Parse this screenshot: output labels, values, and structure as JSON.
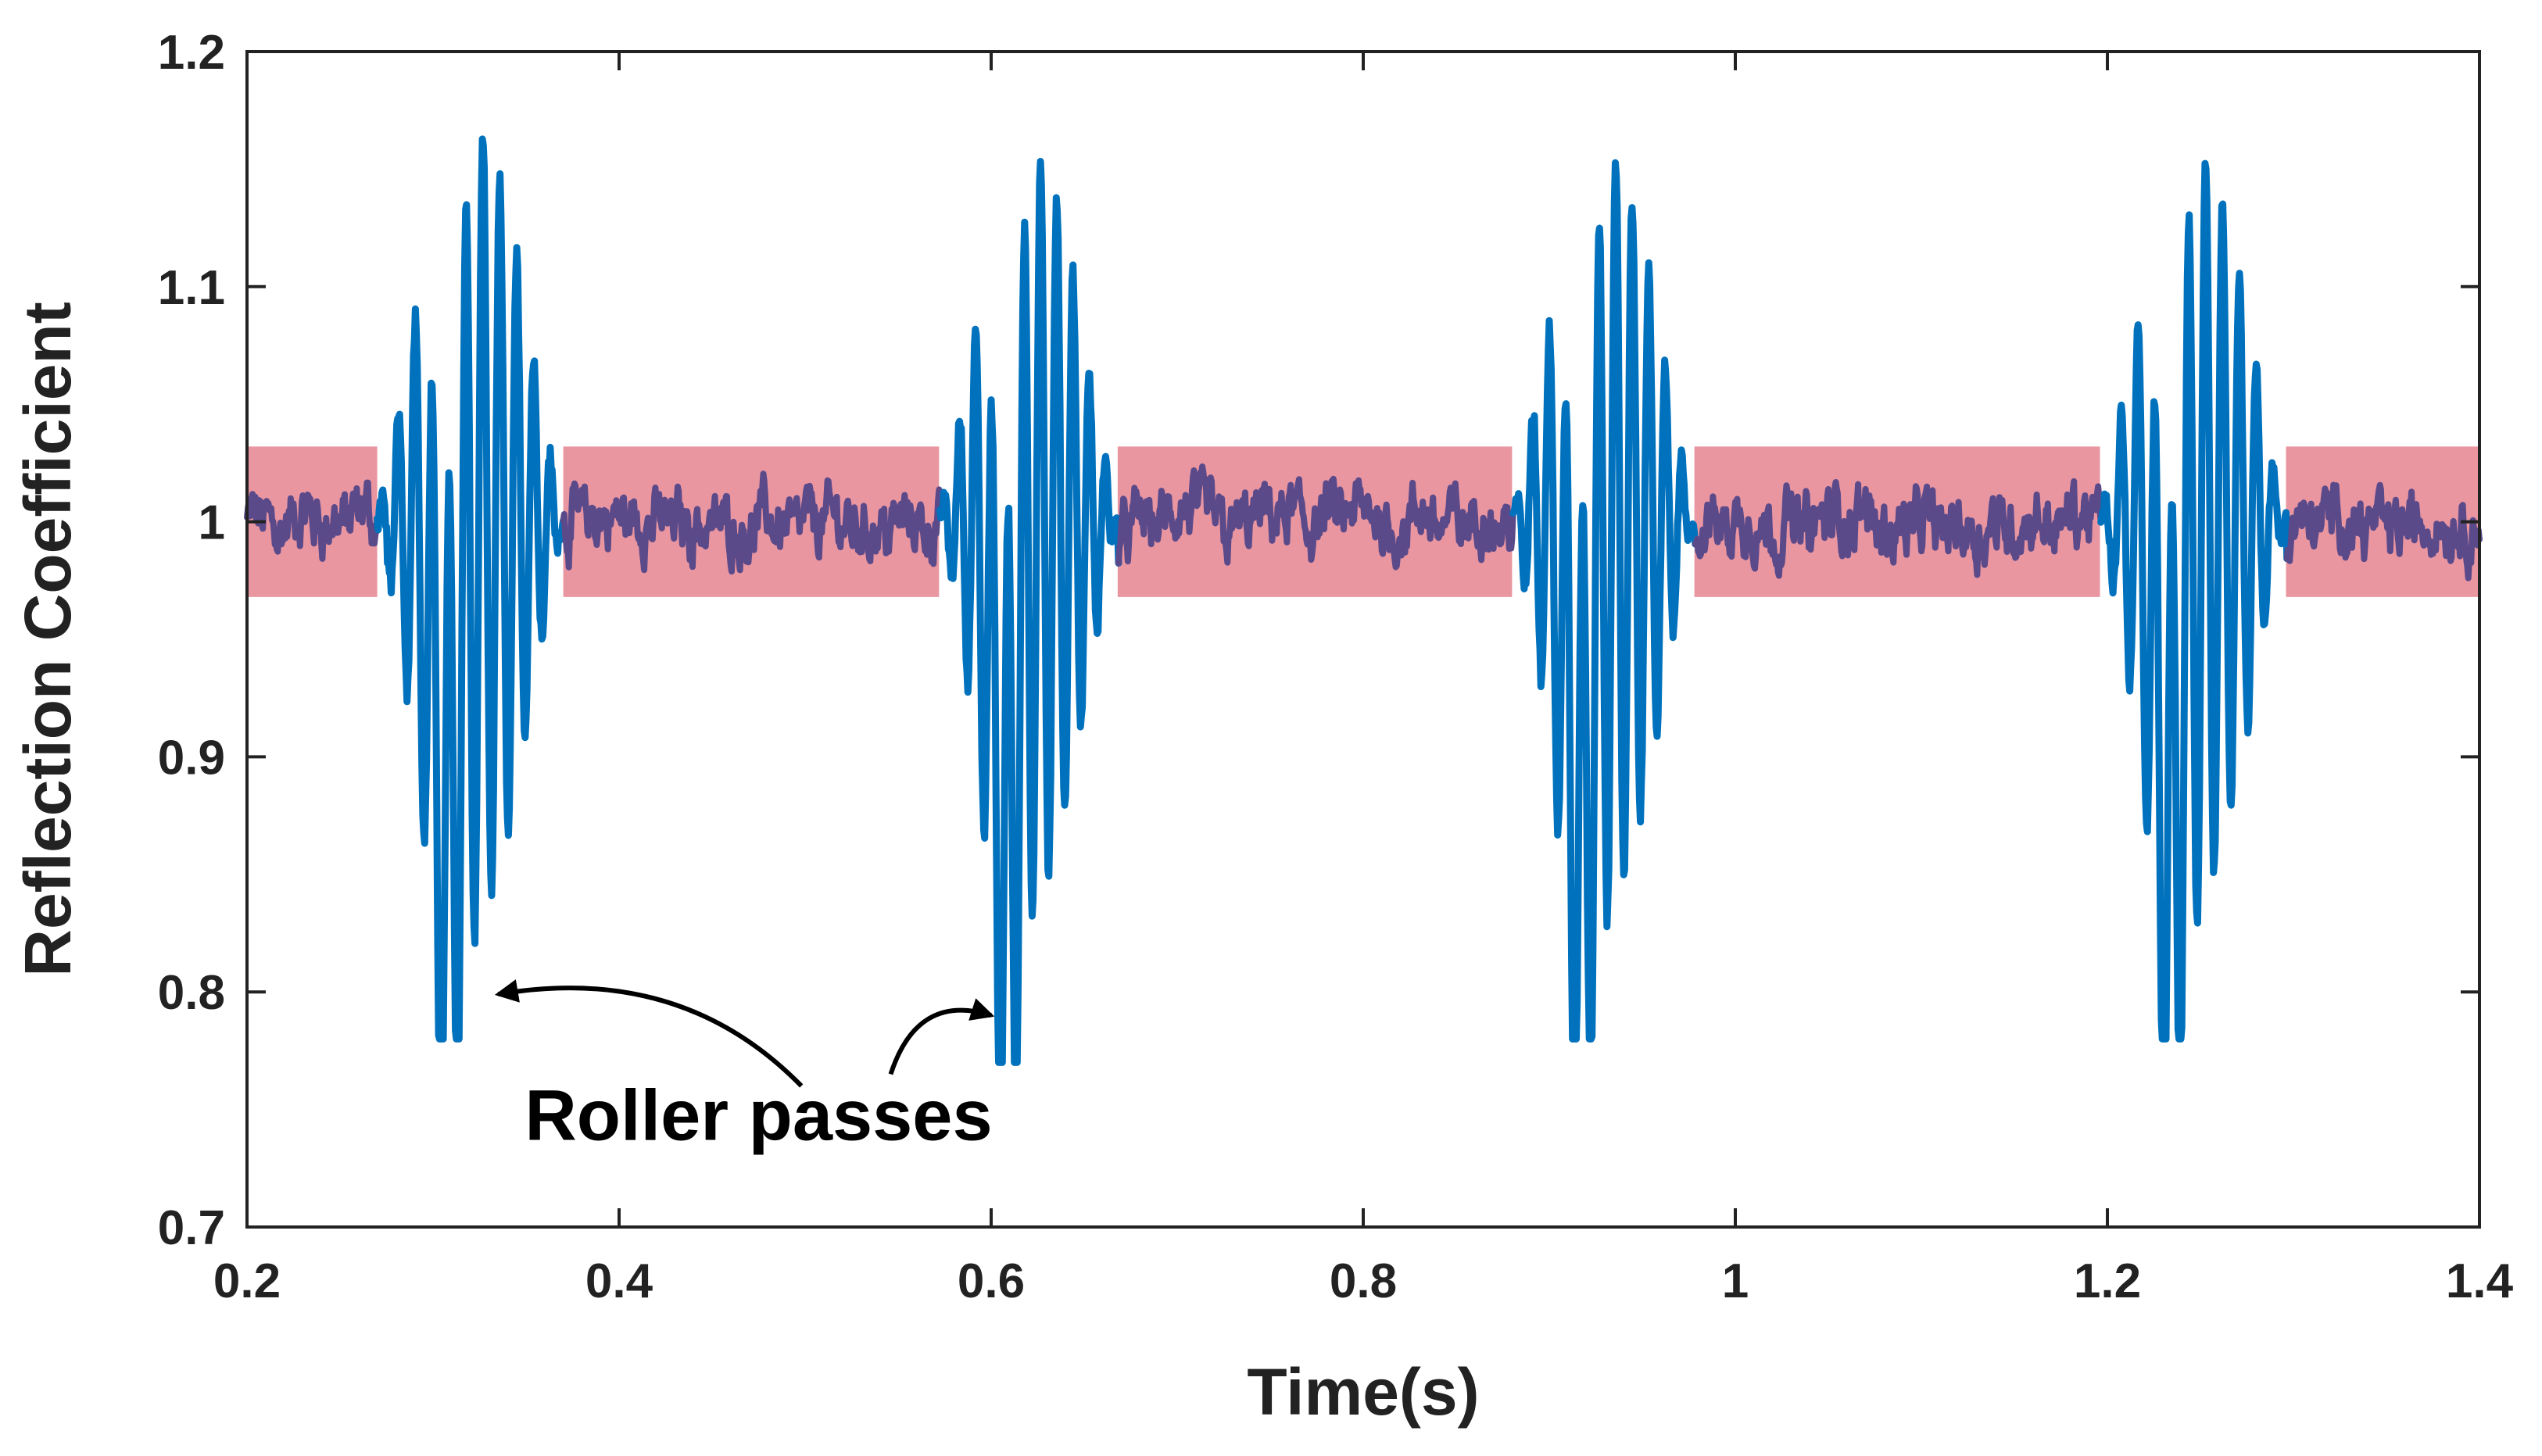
{
  "chart_data": {
    "type": "line",
    "title": "",
    "xlabel": "Time(s)",
    "ylabel": "Reflection Coefficient",
    "xlim": [
      0.2,
      1.4
    ],
    "ylim": [
      0.7,
      1.2
    ],
    "xticks": [
      0.2,
      0.4,
      0.6,
      0.8,
      1,
      1.2,
      1.4
    ],
    "xtick_labels": [
      "0.2",
      "0.4",
      "0.6",
      "0.8",
      "1",
      "1.2",
      "1.4"
    ],
    "yticks": [
      0.7,
      0.8,
      0.9,
      1,
      1.1,
      1.2
    ],
    "ytick_labels": [
      "0.7",
      "0.8",
      "0.9",
      "1",
      "1.1",
      "1.2"
    ],
    "grid": false,
    "legend": "none",
    "colors": {
      "signal": "#0072BD",
      "band": "#E8909C",
      "baseline": "#5B4A8A",
      "axis": "#222222",
      "annotation": "#000000"
    },
    "band": {
      "y_low": 0.968,
      "y_high": 1.032
    },
    "roller_passes": [
      {
        "t_start": 0.27,
        "t_end": 0.37,
        "min": 0.78,
        "max": 1.18
      },
      {
        "t_start": 0.572,
        "t_end": 0.668,
        "min": 0.77,
        "max": 1.17
      },
      {
        "t_start": 0.88,
        "t_end": 0.978,
        "min": 0.78,
        "max": 1.17
      },
      {
        "t_start": 1.196,
        "t_end": 1.296,
        "min": 0.78,
        "max": 1.17
      }
    ],
    "annotations": [
      {
        "text": "Roller passes",
        "text_anchor": [
          0.475,
          0.737
        ],
        "arrows": [
          {
            "from": [
              0.498,
              0.76
            ],
            "to": [
              0.335,
              0.799
            ]
          },
          {
            "from": [
              0.546,
              0.765
            ],
            "to": [
              0.6,
              0.79
            ]
          }
        ]
      }
    ]
  }
}
